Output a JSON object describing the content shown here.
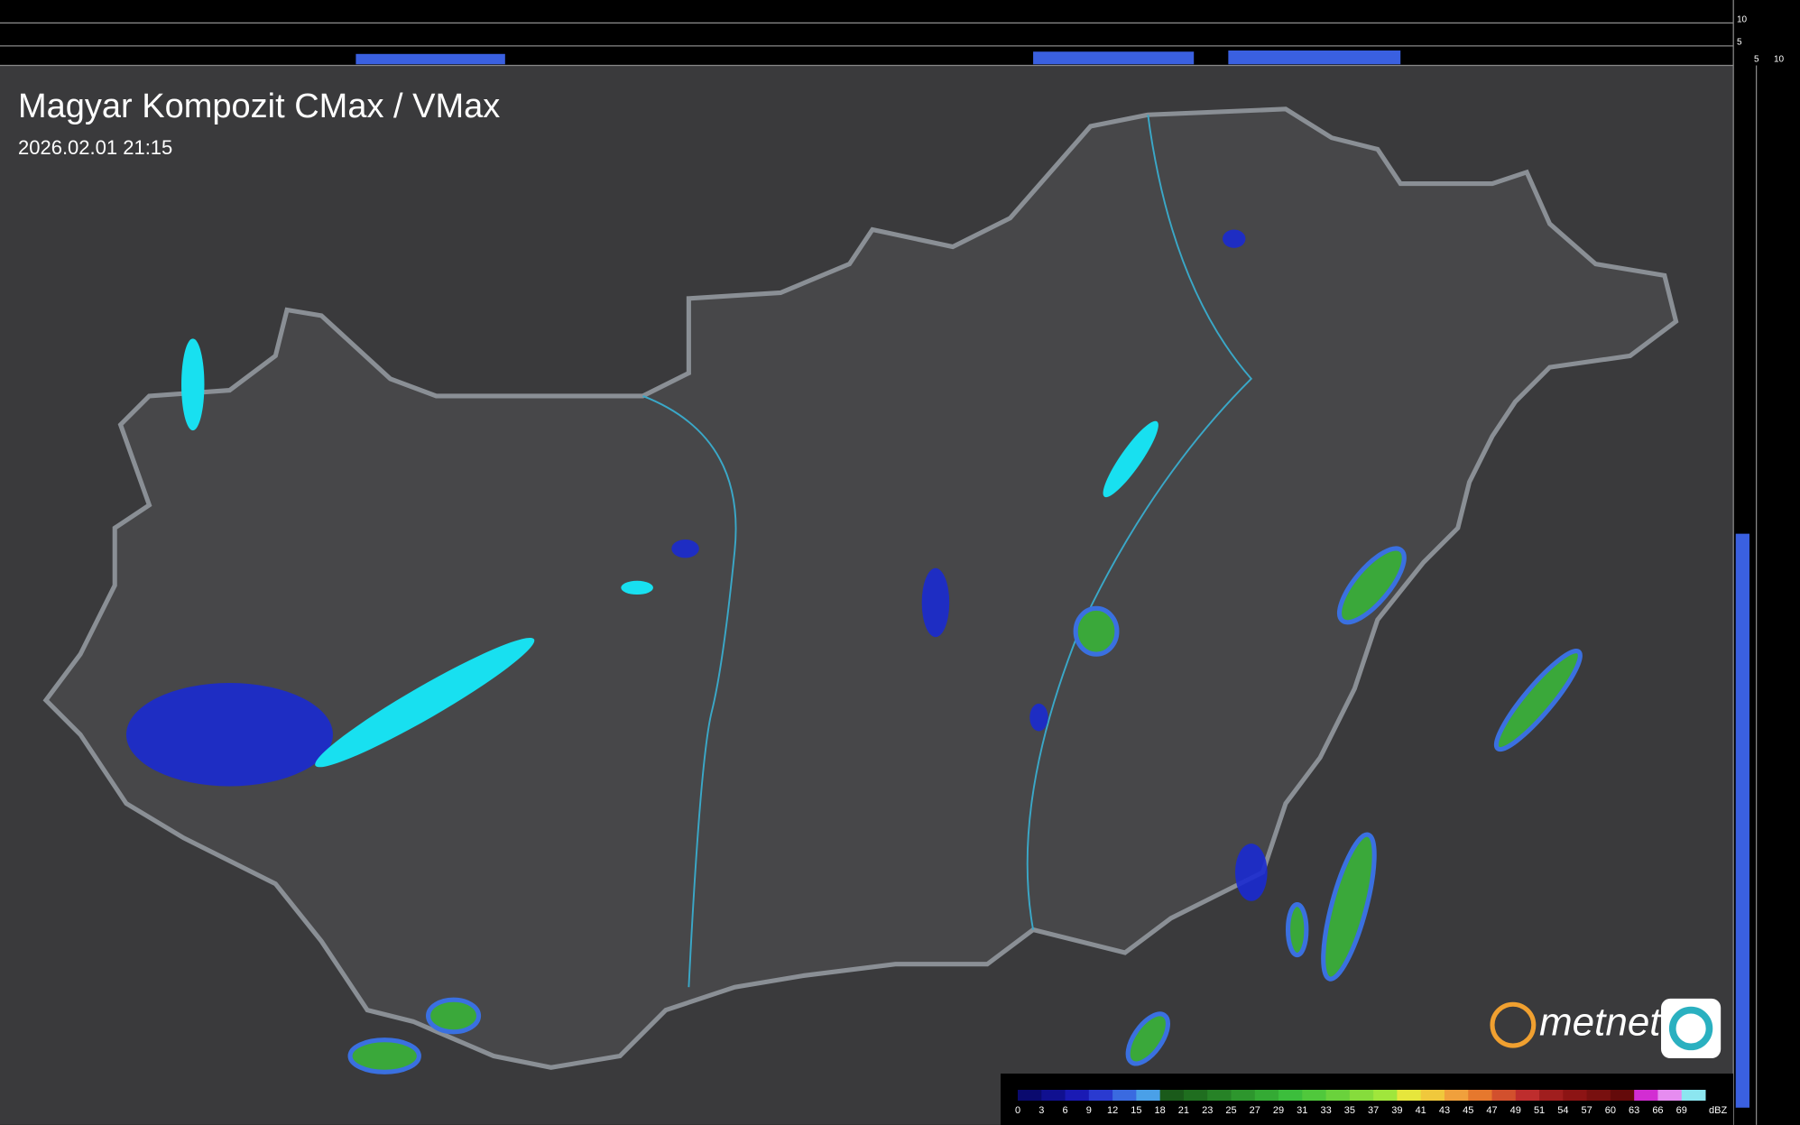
{
  "header": {
    "title": "Magyar Kompozit CMax / VMax",
    "timestamp": "2026.02.01 21:15"
  },
  "profile_axes": {
    "top": [
      "10",
      "5"
    ],
    "side": [
      "5",
      "10"
    ]
  },
  "logo": "metnet",
  "legend": {
    "unit": "dBZ",
    "labels": [
      "0",
      "3",
      "6",
      "9",
      "12",
      "15",
      "18",
      "21",
      "23",
      "25",
      "27",
      "29",
      "31",
      "33",
      "35",
      "37",
      "39",
      "41",
      "43",
      "45",
      "47",
      "49",
      "51",
      "54",
      "57",
      "60",
      "63",
      "66",
      "69"
    ],
    "colors": [
      "#0a0a6e",
      "#101090",
      "#1a1ab4",
      "#2a3ad0",
      "#3a6ae0",
      "#4aa0e8",
      "#1a5a1a",
      "#1f6e1f",
      "#268226",
      "#2d962d",
      "#34aa34",
      "#3cbe3c",
      "#50c83c",
      "#6ad23c",
      "#86dc3c",
      "#a0e63c",
      "#e6e63c",
      "#f0c83c",
      "#f0a03c",
      "#e6782d",
      "#d2502d",
      "#be2d2d",
      "#a01e1e",
      "#8c1414",
      "#78100f",
      "#640a0a",
      "#d22dd2",
      "#e68cf0",
      "#8ce6f0"
    ]
  }
}
